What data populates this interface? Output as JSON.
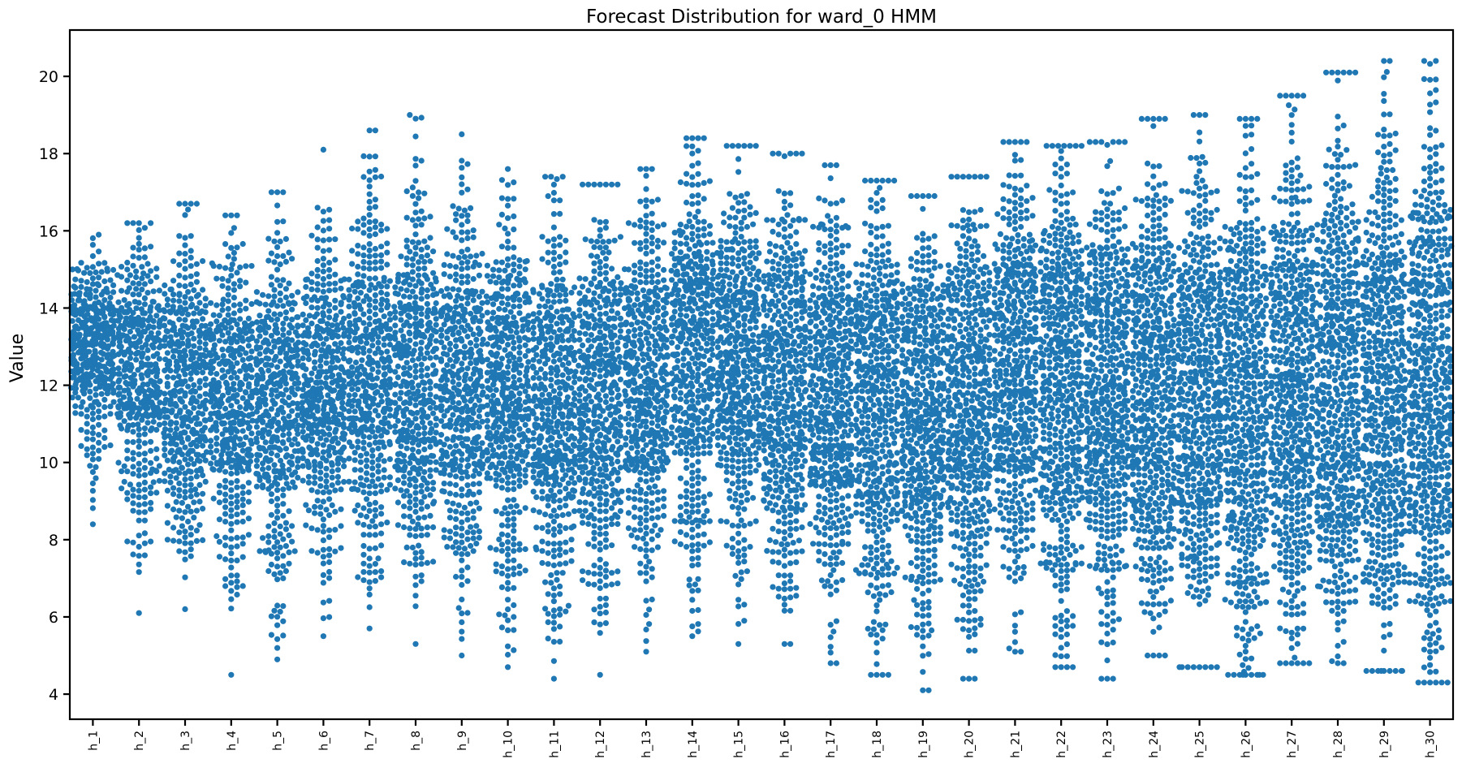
{
  "chart_data": {
    "type": "swarm",
    "title": "Forecast Distribution for ward_0 HMM",
    "xlabel": "",
    "ylabel": "Value",
    "ylim": [
      3.35,
      21.2
    ],
    "yticks": [
      4,
      6,
      8,
      10,
      12,
      14,
      16,
      18,
      20
    ],
    "grid": false,
    "legend": "none",
    "point_color": "#1f77b4",
    "categories": [
      "h_1",
      "h_2",
      "h_3",
      "h_4",
      "h_5",
      "h_6",
      "h_7",
      "h_8",
      "h_9",
      "h_10",
      "h_11",
      "h_12",
      "h_13",
      "h_14",
      "h_15",
      "h_16",
      "h_17",
      "h_18",
      "h_19",
      "h_20",
      "h_21",
      "h_22",
      "h_23",
      "h_24",
      "h_25",
      "h_26",
      "h_27",
      "h_28",
      "h_29",
      "h_30"
    ],
    "series": [
      {
        "values_summary": {
          "min": 8.4,
          "q1": 12.0,
          "median": 13.0,
          "q3": 14.0,
          "max": 15.9
        }
      },
      {
        "values_summary": {
          "min": 6.1,
          "q1": 10.8,
          "median": 12.5,
          "q3": 13.8,
          "max": 16.2
        }
      },
      {
        "values_summary": {
          "min": 6.2,
          "q1": 10.0,
          "median": 12.0,
          "q3": 13.6,
          "max": 16.7
        }
      },
      {
        "values_summary": {
          "min": 4.5,
          "q1": 9.8,
          "median": 11.8,
          "q3": 13.4,
          "max": 16.4
        }
      },
      {
        "values_summary": {
          "min": 4.9,
          "q1": 9.6,
          "median": 11.6,
          "q3": 13.2,
          "max": 17.0
        }
      },
      {
        "values_summary": {
          "min": 5.5,
          "q1": 9.9,
          "median": 11.8,
          "q3": 13.6,
          "max": 18.1
        }
      },
      {
        "values_summary": {
          "min": 5.7,
          "q1": 10.3,
          "median": 12.5,
          "q3": 14.4,
          "max": 18.6
        }
      },
      {
        "values_summary": {
          "min": 5.3,
          "q1": 9.8,
          "median": 12.3,
          "q3": 14.2,
          "max": 19.0
        }
      },
      {
        "values_summary": {
          "min": 5.0,
          "q1": 9.7,
          "median": 12.1,
          "q3": 14.0,
          "max": 18.5
        }
      },
      {
        "values_summary": {
          "min": 4.7,
          "q1": 9.8,
          "median": 12.0,
          "q3": 13.8,
          "max": 17.6
        }
      },
      {
        "values_summary": {
          "min": 4.4,
          "q1": 9.0,
          "median": 11.5,
          "q3": 13.6,
          "max": 17.4
        }
      },
      {
        "values_summary": {
          "min": 4.5,
          "q1": 9.5,
          "median": 12.0,
          "q3": 13.8,
          "max": 17.2
        }
      },
      {
        "values_summary": {
          "min": 5.1,
          "q1": 9.8,
          "median": 12.2,
          "q3": 14.2,
          "max": 17.6
        }
      },
      {
        "values_summary": {
          "min": 5.5,
          "q1": 10.5,
          "median": 13.0,
          "q3": 14.8,
          "max": 18.4
        }
      },
      {
        "values_summary": {
          "min": 5.3,
          "q1": 10.2,
          "median": 12.8,
          "q3": 14.6,
          "max": 18.2
        }
      },
      {
        "values_summary": {
          "min": 5.3,
          "q1": 9.8,
          "median": 12.3,
          "q3": 14.4,
          "max": 18.0
        }
      },
      {
        "values_summary": {
          "min": 4.8,
          "q1": 9.4,
          "median": 11.9,
          "q3": 14.0,
          "max": 17.7
        }
      },
      {
        "values_summary": {
          "min": 4.5,
          "q1": 8.9,
          "median": 11.7,
          "q3": 13.8,
          "max": 17.3
        }
      },
      {
        "values_summary": {
          "min": 4.1,
          "q1": 8.6,
          "median": 11.2,
          "q3": 13.6,
          "max": 16.9
        }
      },
      {
        "values_summary": {
          "min": 4.4,
          "q1": 9.2,
          "median": 11.8,
          "q3": 14.2,
          "max": 17.4
        }
      },
      {
        "values_summary": {
          "min": 5.1,
          "q1": 9.8,
          "median": 12.6,
          "q3": 14.8,
          "max": 18.3
        }
      },
      {
        "values_summary": {
          "min": 4.7,
          "q1": 9.2,
          "median": 12.1,
          "q3": 14.6,
          "max": 18.2
        }
      },
      {
        "values_summary": {
          "min": 4.4,
          "q1": 8.9,
          "median": 11.9,
          "q3": 14.4,
          "max": 18.3
        }
      },
      {
        "values_summary": {
          "min": 5.0,
          "q1": 9.2,
          "median": 12.1,
          "q3": 14.6,
          "max": 18.9
        }
      },
      {
        "values_summary": {
          "min": 4.7,
          "q1": 8.9,
          "median": 11.9,
          "q3": 14.5,
          "max": 19.0
        }
      },
      {
        "values_summary": {
          "min": 4.5,
          "q1": 8.5,
          "median": 11.6,
          "q3": 14.4,
          "max": 18.9
        }
      },
      {
        "values_summary": {
          "min": 4.8,
          "q1": 8.8,
          "median": 12.1,
          "q3": 14.8,
          "max": 19.5
        }
      },
      {
        "values_summary": {
          "min": 4.8,
          "q1": 8.8,
          "median": 12.3,
          "q3": 15.0,
          "max": 20.1
        }
      },
      {
        "values_summary": {
          "min": 4.6,
          "q1": 8.6,
          "median": 12.0,
          "q3": 14.8,
          "max": 20.4
        }
      },
      {
        "values_summary": {
          "min": 4.3,
          "q1": 8.6,
          "median": 12.2,
          "q3": 15.0,
          "max": 20.4
        }
      }
    ]
  }
}
